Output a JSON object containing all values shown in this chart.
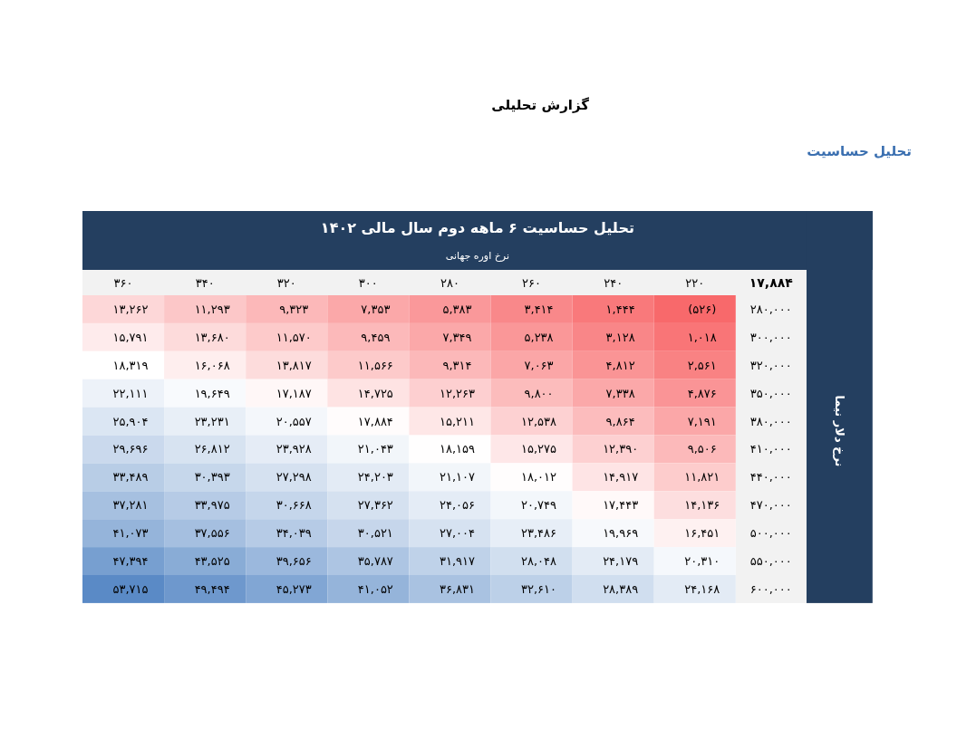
{
  "chart_data": {
    "type": "heatmap",
    "title": "تحلیل حساسیت ۶ ماهه دوم سال مالی ۱۴۰۲",
    "subtitle": "گزارش تحلیلی",
    "xlabel": "نرخ اوره جهانی",
    "ylabel": "نرخ دلار نیما",
    "annotations": [
      "تحلیل حساسیت",
      "۱۷,۸۸۴"
    ],
    "categories": [
      "۳۶۰",
      "۳۴۰",
      "۳۲۰",
      "۳۰۰",
      "۲۸۰",
      "۲۶۰",
      "۲۴۰",
      "۲۲۰"
    ],
    "y_categories": [
      "۲۸۰,۰۰۰",
      "۳۰۰,۰۰۰",
      "۳۲۰,۰۰۰",
      "۳۵۰,۰۰۰",
      "۳۸۰,۰۰۰",
      "۴۱۰,۰۰۰",
      "۴۴۰,۰۰۰",
      "۴۷۰,۰۰۰",
      "۵۰۰,۰۰۰",
      "۵۵۰,۰۰۰",
      "۶۰۰,۰۰۰"
    ],
    "cells": [
      [
        13262,
        11293,
        9323,
        7353,
        5383,
        3414,
        1444,
        -526
      ],
      [
        15791,
        13680,
        11570,
        9459,
        7349,
        5238,
        3128,
        1018
      ],
      [
        18319,
        16068,
        13817,
        11566,
        9314,
        7063,
        4812,
        2561
      ],
      [
        22111,
        19649,
        17187,
        14725,
        12263,
        9800,
        7338,
        4876
      ],
      [
        25904,
        23231,
        20557,
        17884,
        15211,
        12538,
        9864,
        7191
      ],
      [
        29696,
        26812,
        23928,
        21043,
        18159,
        15275,
        12390,
        9506
      ],
      [
        33489,
        30393,
        27298,
        24203,
        21107,
        18012,
        14917,
        11821
      ],
      [
        37281,
        33975,
        30668,
        27362,
        24056,
        20749,
        17443,
        14136
      ],
      [
        41073,
        37556,
        34039,
        30521,
        27004,
        23486,
        19969,
        16451
      ],
      [
        47394,
        43525,
        39656,
        35787,
        31917,
        28048,
        24179,
        20310
      ],
      [
        53715,
        49494,
        45273,
        41052,
        36831,
        32610,
        28389,
        24168
      ]
    ],
    "cell_labels": [
      [
        "۱۳,۲۶۲",
        "۱۱,۲۹۳",
        "۹,۳۲۳",
        "۷,۳۵۳",
        "۵,۳۸۳",
        "۳,۴۱۴",
        "۱,۴۴۴",
        "(۵۲۶)"
      ],
      [
        "۱۵,۷۹۱",
        "۱۳,۶۸۰",
        "۱۱,۵۷۰",
        "۹,۴۵۹",
        "۷,۳۴۹",
        "۵,۲۳۸",
        "۳,۱۲۸",
        "۱,۰۱۸"
      ],
      [
        "۱۸,۳۱۹",
        "۱۶,۰۶۸",
        "۱۳,۸۱۷",
        "۱۱,۵۶۶",
        "۹,۳۱۴",
        "۷,۰۶۳",
        "۴,۸۱۲",
        "۲,۵۶۱"
      ],
      [
        "۲۲,۱۱۱",
        "۱۹,۶۴۹",
        "۱۷,۱۸۷",
        "۱۴,۷۲۵",
        "۱۲,۲۶۳",
        "۹,۸۰۰",
        "۷,۳۳۸",
        "۴,۸۷۶"
      ],
      [
        "۲۵,۹۰۴",
        "۲۳,۲۳۱",
        "۲۰,۵۵۷",
        "۱۷,۸۸۴",
        "۱۵,۲۱۱",
        "۱۲,۵۳۸",
        "۹,۸۶۴",
        "۷,۱۹۱"
      ],
      [
        "۲۹,۶۹۶",
        "۲۶,۸۱۲",
        "۲۳,۹۲۸",
        "۲۱,۰۴۳",
        "۱۸,۱۵۹",
        "۱۵,۲۷۵",
        "۱۲,۳۹۰",
        "۹,۵۰۶"
      ],
      [
        "۳۳,۴۸۹",
        "۳۰,۳۹۳",
        "۲۷,۲۹۸",
        "۲۴,۲۰۳",
        "۲۱,۱۰۷",
        "۱۸,۰۱۲",
        "۱۴,۹۱۷",
        "۱۱,۸۲۱"
      ],
      [
        "۳۷,۲۸۱",
        "۳۳,۹۷۵",
        "۳۰,۶۶۸",
        "۲۷,۳۶۲",
        "۲۴,۰۵۶",
        "۲۰,۷۴۹",
        "۱۷,۴۴۳",
        "۱۴,۱۳۶"
      ],
      [
        "۴۱,۰۷۳",
        "۳۷,۵۵۶",
        "۳۴,۰۳۹",
        "۳۰,۵۲۱",
        "۲۷,۰۰۴",
        "۲۳,۴۸۶",
        "۱۹,۹۶۹",
        "۱۶,۴۵۱"
      ],
      [
        "۴۷,۳۹۴",
        "۴۳,۵۲۵",
        "۳۹,۶۵۶",
        "۳۵,۷۸۷",
        "۳۱,۹۱۷",
        "۲۸,۰۴۸",
        "۲۴,۱۷۹",
        "۲۰,۳۱۰"
      ],
      [
        "۵۳,۷۱۵",
        "۴۹,۴۹۴",
        "۴۵,۲۷۳",
        "۴۱,۰۵۲",
        "۳۶,۸۳۱",
        "۳۲,۶۱۰",
        "۲۸,۳۸۹",
        "۲۴,۱۶۸"
      ]
    ]
  }
}
